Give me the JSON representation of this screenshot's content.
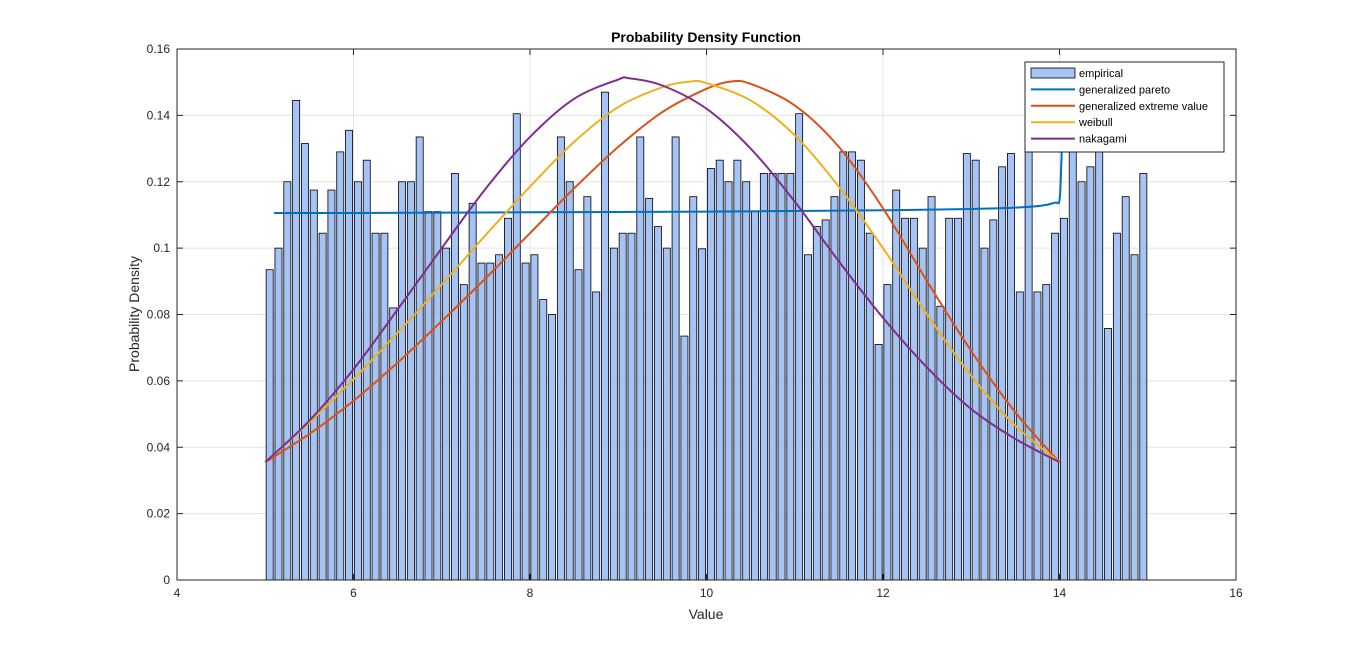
{
  "chart_data": {
    "type": "bar",
    "title": "Probability Density Function",
    "xlabel": "Value",
    "ylabel": "Probability Density",
    "xlim": [
      4,
      16
    ],
    "ylim": [
      0,
      0.16
    ],
    "x_ticks": [
      "4",
      "6",
      "8",
      "10",
      "12",
      "14",
      "16"
    ],
    "y_ticks": [
      "0",
      "0.02",
      "0.04",
      "0.06",
      "0.08",
      "0.1",
      "0.12",
      "0.14",
      "0.16"
    ],
    "x_tick_values": [
      4,
      6,
      8,
      10,
      12,
      14,
      16
    ],
    "y_tick_values": [
      0,
      0.02,
      0.04,
      0.06,
      0.08,
      0.1,
      0.12,
      0.14,
      0.16
    ],
    "grid": true,
    "legend_position": "top-right",
    "empirical": {
      "name": "empirical",
      "color": "#a6c3f5",
      "bin_start": 5.0,
      "bin_width": 0.1,
      "values": [
        0.0935,
        0.1,
        0.12,
        0.1445,
        0.1315,
        0.1175,
        0.1045,
        0.1175,
        0.129,
        0.1355,
        0.12,
        0.1265,
        0.1045,
        0.1045,
        0.082,
        0.12,
        0.12,
        0.1335,
        0.111,
        0.111,
        0.1,
        0.1225,
        0.089,
        0.1135,
        0.0955,
        0.0955,
        0.098,
        0.109,
        0.1405,
        0.0955,
        0.098,
        0.0845,
        0.08,
        0.1335,
        0.12,
        0.0935,
        0.1155,
        0.0868,
        0.147,
        0.1,
        0.1045,
        0.1045,
        0.1335,
        0.115,
        0.1065,
        0.1,
        0.1335,
        0.0735,
        0.1155,
        0.0998,
        0.124,
        0.1265,
        0.12,
        0.1265,
        0.12,
        0.111,
        0.1225,
        0.1225,
        0.1225,
        0.1225,
        0.1405,
        0.098,
        0.1065,
        0.1085,
        0.1155,
        0.129,
        0.129,
        0.1265,
        0.1045,
        0.071,
        0.089,
        0.1175,
        0.109,
        0.109,
        0.1,
        0.1155,
        0.0825,
        0.109,
        0.109,
        0.1285,
        0.1265,
        0.1,
        0.1085,
        0.1245,
        0.1285,
        0.0868,
        0.129,
        0.0868,
        0.089,
        0.1045,
        0.109,
        0.151,
        0.12,
        0.1245,
        0.1335,
        0.0758,
        0.1045,
        0.1155,
        0.098,
        0.1225
      ]
    },
    "series": [
      {
        "name": "generalized pareto",
        "color": "#0072bd",
        "x": [
          5.1,
          6,
          7,
          8,
          9,
          10,
          11,
          12,
          13,
          13.5,
          13.8,
          13.95,
          14.0,
          14.02,
          14.04
        ],
        "values": [
          0.1106,
          0.1106,
          0.1107,
          0.1108,
          0.1109,
          0.111,
          0.1112,
          0.1114,
          0.1118,
          0.1122,
          0.1128,
          0.1137,
          0.1145,
          0.125,
          0.14
        ]
      },
      {
        "name": "generalized extreme value",
        "color": "#d95319",
        "x": [
          5.0,
          5.5,
          6.0,
          6.5,
          7.0,
          7.5,
          8.0,
          8.5,
          9.0,
          9.5,
          10.0,
          10.28,
          10.5,
          11.0,
          11.5,
          12.0,
          12.5,
          13.0,
          13.5,
          14.0
        ],
        "values": [
          0.0355,
          0.044,
          0.054,
          0.0655,
          0.078,
          0.091,
          0.1045,
          0.118,
          0.1305,
          0.141,
          0.148,
          0.1502,
          0.1495,
          0.143,
          0.1305,
          0.112,
          0.09,
          0.069,
          0.0505,
          0.0355
        ]
      },
      {
        "name": "weibull",
        "color": "#edb120",
        "x": [
          5.0,
          5.5,
          6.0,
          6.5,
          7.0,
          7.5,
          8.0,
          8.5,
          9.0,
          9.5,
          9.82,
          10.0,
          10.5,
          11.0,
          11.5,
          12.0,
          12.5,
          13.0,
          13.5,
          14.0
        ],
        "values": [
          0.0355,
          0.0475,
          0.0605,
          0.0745,
          0.089,
          0.104,
          0.1185,
          0.132,
          0.1425,
          0.1485,
          0.1502,
          0.1497,
          0.1445,
          0.134,
          0.1185,
          0.1,
          0.08,
          0.0615,
          0.0465,
          0.0355
        ]
      },
      {
        "name": "nakagami",
        "color": "#7e2f8e",
        "x": [
          5.0,
          5.5,
          6.0,
          6.5,
          7.0,
          7.5,
          8.0,
          8.5,
          9.0,
          9.12,
          9.5,
          10.0,
          10.5,
          11.0,
          11.5,
          12.0,
          12.5,
          13.0,
          13.5,
          14.0
        ],
        "values": [
          0.0355,
          0.048,
          0.0635,
          0.0815,
          0.1,
          0.118,
          0.1335,
          0.145,
          0.1508,
          0.1512,
          0.149,
          0.142,
          0.13,
          0.114,
          0.096,
          0.079,
          0.064,
          0.0515,
          0.0425,
          0.0355
        ]
      }
    ]
  }
}
